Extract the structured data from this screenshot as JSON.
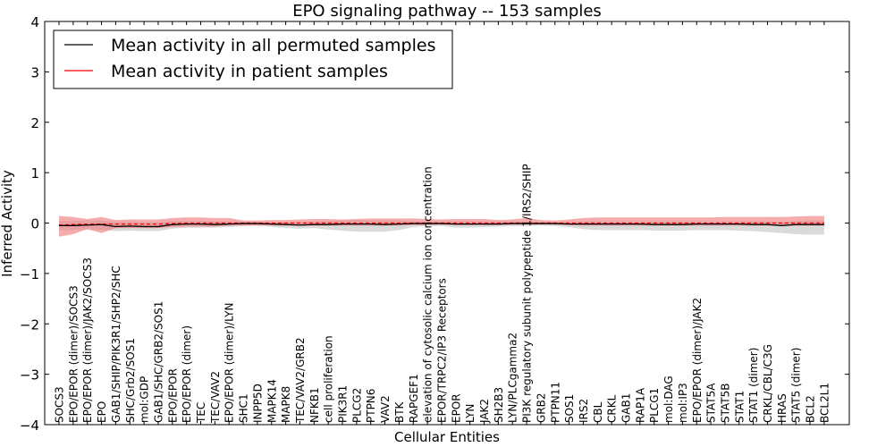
{
  "chart_data": {
    "type": "line",
    "title": "EPO signaling pathway -- 153 samples",
    "xlabel": "Cellular Entities",
    "ylabel": "Inferred Activity",
    "ylim": [
      -4,
      4
    ],
    "yticks": [
      4,
      3,
      2,
      1,
      0,
      -1,
      -2,
      -3,
      -4
    ],
    "ytick_labels": [
      "4",
      "3",
      "2",
      "1",
      "0",
      "−1",
      "−2",
      "−3",
      "−4"
    ],
    "grid": false,
    "legend_position": "top-left",
    "categories": [
      "SOCS3",
      "EPO/EPOR (dimer)/SOCS3",
      "EPO/EPOR (dimer)/JAK2/SOCS3",
      "EPO",
      "GAB1/SHIP/PIK3R1/SHP2/SHC",
      "SHC/Grb2/SOS1",
      "mol:GDP",
      "GAB1/SHC/GRB2/SOS1",
      "EPO/EPOR",
      "EPO/EPOR (dimer)",
      "TEC",
      "TEC/VAV2",
      "EPO/EPOR (dimer)/LYN",
      "SHC1",
      "INPP5D",
      "MAPK14",
      "MAPK8",
      "TEC/VAV2/GRB2",
      "NFKB1",
      "cell proliferation",
      "PIK3R1",
      "PLCG2",
      "PTPN6",
      "VAV2",
      "BTK",
      "RAPGEF1",
      "elevation of cytosolic calcium ion concentration",
      "EPOR/TRPC2/IP3 Receptors",
      "EPOR",
      "LYN",
      "JAK2",
      "SH2B3",
      "LYN/PLCgamma2",
      "PI3K regulatory subunit polypeptide 1/IRS2/SHIP",
      "GRB2",
      "PTPN11",
      "SOS1",
      "IRS2",
      "CBL",
      "CRKL",
      "GAB1",
      "RAP1A",
      "PLCG1",
      "mol:DAG",
      "mol:IP3",
      "EPO/EPOR (dimer)/JAK2",
      "STAT5A",
      "STAT5B",
      "STAT1",
      "STAT1 (dimer)",
      "CRKL/CBL/C3G",
      "HRAS",
      "STAT5 (dimer)",
      "BCL2",
      "BCL2L1"
    ],
    "series": [
      {
        "name": "Mean activity in all permuted samples",
        "color": "#000000",
        "band_color": "#bbbbbb",
        "values": [
          -0.05,
          -0.05,
          -0.04,
          -0.03,
          -0.07,
          -0.06,
          -0.07,
          -0.07,
          -0.03,
          -0.02,
          -0.02,
          -0.03,
          -0.02,
          -0.01,
          -0.01,
          -0.02,
          -0.03,
          -0.04,
          -0.03,
          -0.03,
          -0.02,
          -0.02,
          -0.02,
          -0.03,
          -0.02,
          -0.01,
          -0.01,
          -0.01,
          -0.02,
          -0.02,
          -0.02,
          -0.02,
          -0.01,
          -0.01,
          -0.01,
          -0.01,
          -0.02,
          -0.02,
          -0.02,
          -0.02,
          -0.02,
          -0.02,
          -0.03,
          -0.03,
          -0.03,
          -0.02,
          -0.02,
          -0.02,
          -0.02,
          -0.03,
          -0.03,
          -0.05,
          -0.03,
          -0.03,
          -0.03
        ],
        "band_upper": [
          0.04,
          0.04,
          0.05,
          0.05,
          0.02,
          0.03,
          0.02,
          0.02,
          0.04,
          0.04,
          0.04,
          0.03,
          0.03,
          0.03,
          0.02,
          0.02,
          0.02,
          0.02,
          0.03,
          0.04,
          0.05,
          0.06,
          0.05,
          0.05,
          0.05,
          0.04,
          0.03,
          0.03,
          0.04,
          0.04,
          0.03,
          0.03,
          0.03,
          0.03,
          0.02,
          0.02,
          0.02,
          0.03,
          0.03,
          0.03,
          0.03,
          0.03,
          0.03,
          0.03,
          0.03,
          0.03,
          0.03,
          0.03,
          0.03,
          0.03,
          0.03,
          0.02,
          0.04,
          0.05,
          0.05
        ],
        "band_lower": [
          -0.14,
          -0.14,
          -0.13,
          -0.13,
          -0.16,
          -0.15,
          -0.16,
          -0.16,
          -0.11,
          -0.09,
          -0.09,
          -0.09,
          -0.08,
          -0.06,
          -0.05,
          -0.07,
          -0.1,
          -0.11,
          -0.1,
          -0.13,
          -0.15,
          -0.17,
          -0.17,
          -0.17,
          -0.14,
          -0.08,
          -0.06,
          -0.06,
          -0.09,
          -0.09,
          -0.08,
          -0.07,
          -0.06,
          -0.06,
          -0.05,
          -0.06,
          -0.08,
          -0.12,
          -0.14,
          -0.14,
          -0.14,
          -0.14,
          -0.15,
          -0.15,
          -0.15,
          -0.14,
          -0.14,
          -0.14,
          -0.15,
          -0.16,
          -0.18,
          -0.2,
          -0.22,
          -0.23,
          -0.23
        ]
      },
      {
        "name": "Mean activity in patient samples",
        "color": "#ff0000",
        "band_color": "#f08080",
        "values": [
          -0.04,
          -0.03,
          -0.02,
          -0.02,
          -0.02,
          -0.02,
          -0.02,
          -0.02,
          -0.01,
          0.0,
          0.0,
          0.0,
          0.0,
          0.0,
          0.0,
          0.0,
          0.0,
          0.0,
          0.0,
          0.0,
          0.0,
          0.0,
          0.0,
          0.0,
          0.0,
          0.0,
          0.0,
          0.0,
          0.0,
          0.0,
          0.0,
          0.0,
          0.0,
          0.0,
          0.0,
          0.0,
          0.0,
          0.0,
          0.0,
          0.0,
          0.0,
          0.0,
          0.0,
          0.0,
          0.0,
          0.0,
          0.0,
          0.0,
          0.0,
          0.0,
          0.0,
          0.0,
          0.0,
          0.0,
          0.0
        ],
        "band_upper": [
          0.14,
          0.12,
          0.08,
          0.12,
          0.06,
          0.07,
          0.07,
          0.07,
          0.1,
          0.11,
          0.11,
          0.1,
          0.1,
          0.05,
          0.05,
          0.06,
          0.06,
          0.07,
          0.08,
          0.08,
          0.07,
          0.08,
          0.09,
          0.09,
          0.09,
          0.09,
          0.08,
          0.07,
          0.08,
          0.08,
          0.08,
          0.06,
          0.07,
          0.1,
          0.06,
          0.05,
          0.07,
          0.1,
          0.11,
          0.11,
          0.11,
          0.11,
          0.11,
          0.11,
          0.11,
          0.11,
          0.11,
          0.12,
          0.12,
          0.12,
          0.12,
          0.12,
          0.13,
          0.14,
          0.14
        ],
        "band_lower": [
          -0.27,
          -0.22,
          -0.12,
          -0.2,
          -0.1,
          -0.1,
          -0.1,
          -0.1,
          -0.08,
          -0.07,
          -0.07,
          -0.07,
          -0.05,
          -0.05,
          -0.05,
          -0.05,
          -0.05,
          -0.05,
          -0.05,
          -0.05,
          -0.05,
          -0.05,
          -0.05,
          -0.05,
          -0.05,
          -0.04,
          -0.04,
          -0.03,
          -0.04,
          -0.04,
          -0.04,
          -0.04,
          -0.03,
          -0.03,
          -0.03,
          -0.03,
          -0.04,
          -0.05,
          -0.05,
          -0.05,
          -0.05,
          -0.05,
          -0.05,
          -0.05,
          -0.05,
          -0.05,
          -0.05,
          -0.05,
          -0.05,
          -0.05,
          -0.05,
          -0.05,
          -0.05,
          -0.05,
          -0.05
        ]
      }
    ]
  }
}
